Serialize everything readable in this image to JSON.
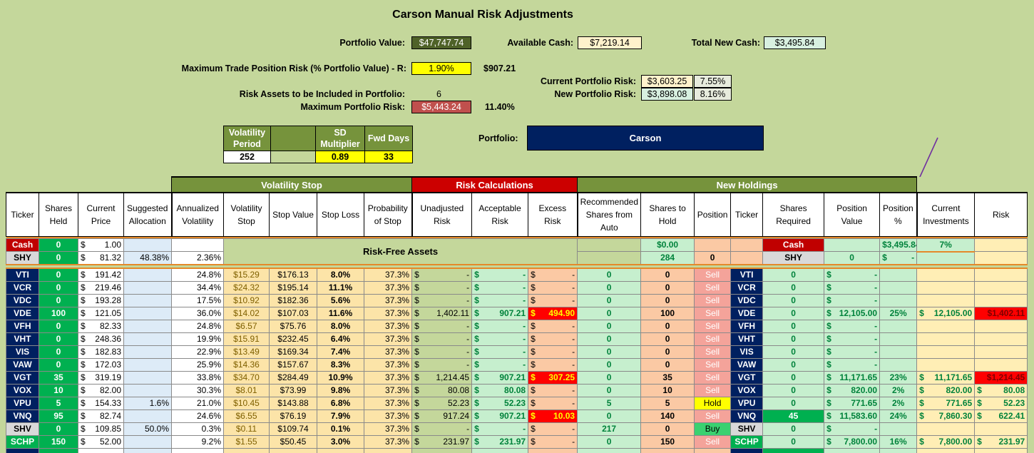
{
  "title": "Carson Manual Risk Adjustments",
  "summary": {
    "portfolio_value_label": "Portfolio Value:",
    "portfolio_value": "$47,747.74",
    "available_cash_label": "Available Cash:",
    "available_cash": "$7,219.14",
    "total_new_cash_label": "Total New Cash:",
    "total_new_cash": "$3,495.84",
    "max_trade_risk_label": "Maximum Trade Position Risk (% Portfolio Value) - R:",
    "max_trade_risk_pct": "1.90%",
    "max_trade_risk_amt": "$907.21",
    "current_risk_label": "Current Portfolio Risk:",
    "current_risk_amt": "$3,603.25",
    "current_risk_pct": "7.55%",
    "new_risk_label": "New Portfolio Risk:",
    "new_risk_amt": "$3,898.08",
    "new_risk_pct": "8.16%",
    "risk_assets_label": "Risk Assets to be Included in Portfolio:",
    "risk_assets_count": "6",
    "max_portfolio_risk_label": "Maximum Portfolio Risk:",
    "max_portfolio_risk_amt": "$5,443.24",
    "max_portfolio_risk_pct": "11.40%",
    "portfolio_label": "Portfolio:",
    "portfolio_name": "Carson"
  },
  "volatility": {
    "period_label": "Volatility Period",
    "sd_label": "SD Multiplier",
    "fwd_label": "Fwd Days",
    "period": "252",
    "sd": "0.89",
    "fwd": "33"
  },
  "bands": {
    "volatility_stop": "Volatility Stop",
    "risk_calculations": "Risk Calculations",
    "new_holdings": "New Holdings"
  },
  "headers": [
    "Ticker",
    "Shares Held",
    "Current Price",
    "Suggested Allocation",
    "Annualized Volatility",
    "Volatility Stop",
    "Stop Value",
    "Stop Loss",
    "Probability of Stop",
    "Unadjusted Risk",
    "Acceptable Risk",
    "Excess Risk",
    "Recommended Shares from Auto",
    "Shares to Hold",
    "Position",
    "Ticker",
    "Shares Required",
    "Position Value",
    "Position %",
    "Current Investments",
    "Risk"
  ],
  "risk_free_label": "Risk-Free Assets",
  "cash_row": {
    "ticker": "Cash",
    "shares": "0",
    "price": "1.00",
    "rec": "$0.00",
    "ticker2": "Cash",
    "pos_value": "$3,495.84",
    "pos_pct": "7%"
  },
  "shy_row": {
    "ticker": "SHY",
    "shares": "0",
    "price": "81.32",
    "alloc": "48.38%",
    "vol": "2.36%",
    "rec": "284",
    "hold": "0",
    "ticker2": "SHY",
    "req": "0",
    "pos_value": "-"
  },
  "rows": [
    {
      "t": "VTI",
      "sh": "0",
      "p": "191.42",
      "alloc": "",
      "vol": "24.8%",
      "vs": "$15.29",
      "sv": "$176.13",
      "sl": "8.0%",
      "ps": "37.3%",
      "ur": "-",
      "ar": "-",
      "er": "-",
      "er_hi": false,
      "rec": "0",
      "hold": "0",
      "pos": "Sell",
      "req": "0",
      "pv": "-",
      "pp": "",
      "ci": "",
      "risk": "",
      "risk_hi": false
    },
    {
      "t": "VCR",
      "sh": "0",
      "p": "219.46",
      "alloc": "",
      "vol": "34.4%",
      "vs": "$24.32",
      "sv": "$195.14",
      "sl": "11.1%",
      "ps": "37.3%",
      "ur": "-",
      "ar": "-",
      "er": "-",
      "er_hi": false,
      "rec": "0",
      "hold": "0",
      "pos": "Sell",
      "req": "0",
      "pv": "-",
      "pp": "",
      "ci": "",
      "risk": "",
      "risk_hi": false
    },
    {
      "t": "VDC",
      "sh": "0",
      "p": "193.28",
      "alloc": "",
      "vol": "17.5%",
      "vs": "$10.92",
      "sv": "$182.36",
      "sl": "5.6%",
      "ps": "37.3%",
      "ur": "-",
      "ar": "-",
      "er": "-",
      "er_hi": false,
      "rec": "0",
      "hold": "0",
      "pos": "Sell",
      "req": "0",
      "pv": "-",
      "pp": "",
      "ci": "",
      "risk": "",
      "risk_hi": false
    },
    {
      "t": "VDE",
      "sh": "100",
      "p": "121.05",
      "alloc": "",
      "vol": "36.0%",
      "vs": "$14.02",
      "sv": "$107.03",
      "sl": "11.6%",
      "ps": "37.3%",
      "ur": "1,402.11",
      "ar": "907.21",
      "er": "494.90",
      "er_hi": true,
      "rec": "0",
      "hold": "100",
      "pos": "Sell",
      "req": "0",
      "pv": "12,105.00",
      "pp": "25%",
      "ci": "12,105.00",
      "risk": "$1,402.11",
      "risk_hi": true
    },
    {
      "t": "VFH",
      "sh": "0",
      "p": "82.33",
      "alloc": "",
      "vol": "24.8%",
      "vs": "$6.57",
      "sv": "$75.76",
      "sl": "8.0%",
      "ps": "37.3%",
      "ur": "-",
      "ar": "-",
      "er": "-",
      "er_hi": false,
      "rec": "0",
      "hold": "0",
      "pos": "Sell",
      "req": "0",
      "pv": "-",
      "pp": "",
      "ci": "",
      "risk": "",
      "risk_hi": false
    },
    {
      "t": "VHT",
      "sh": "0",
      "p": "248.36",
      "alloc": "",
      "vol": "19.9%",
      "vs": "$15.91",
      "sv": "$232.45",
      "sl": "6.4%",
      "ps": "37.3%",
      "ur": "-",
      "ar": "-",
      "er": "-",
      "er_hi": false,
      "rec": "0",
      "hold": "0",
      "pos": "Sell",
      "req": "0",
      "pv": "-",
      "pp": "",
      "ci": "",
      "risk": "",
      "risk_hi": false
    },
    {
      "t": "VIS",
      "sh": "0",
      "p": "182.83",
      "alloc": "",
      "vol": "22.9%",
      "vs": "$13.49",
      "sv": "$169.34",
      "sl": "7.4%",
      "ps": "37.3%",
      "ur": "-",
      "ar": "-",
      "er": "-",
      "er_hi": false,
      "rec": "0",
      "hold": "0",
      "pos": "Sell",
      "req": "0",
      "pv": "-",
      "pp": "",
      "ci": "",
      "risk": "",
      "risk_hi": false
    },
    {
      "t": "VAW",
      "sh": "0",
      "p": "172.03",
      "alloc": "",
      "vol": "25.9%",
      "vs": "$14.36",
      "sv": "$157.67",
      "sl": "8.3%",
      "ps": "37.3%",
      "ur": "-",
      "ar": "-",
      "er": "-",
      "er_hi": false,
      "rec": "0",
      "hold": "0",
      "pos": "Sell",
      "req": "0",
      "pv": "-",
      "pp": "",
      "ci": "",
      "risk": "",
      "risk_hi": false
    },
    {
      "t": "VGT",
      "sh": "35",
      "p": "319.19",
      "alloc": "",
      "vol": "33.8%",
      "vs": "$34.70",
      "sv": "$284.49",
      "sl": "10.9%",
      "ps": "37.3%",
      "ur": "1,214.45",
      "ar": "907.21",
      "er": "307.25",
      "er_hi": true,
      "rec": "0",
      "hold": "35",
      "pos": "Sell",
      "req": "0",
      "pv": "11,171.65",
      "pp": "23%",
      "ci": "11,171.65",
      "risk": "$1,214.45",
      "risk_hi": true
    },
    {
      "t": "VOX",
      "sh": "10",
      "p": "82.00",
      "alloc": "",
      "vol": "30.3%",
      "vs": "$8.01",
      "sv": "$73.99",
      "sl": "9.8%",
      "ps": "37.3%",
      "ur": "80.08",
      "ar": "80.08",
      "er": "-",
      "er_hi": false,
      "rec": "0",
      "hold": "10",
      "pos": "Sell",
      "req": "0",
      "pv": "820.00",
      "pp": "2%",
      "ci": "820.00",
      "risk": "80.08",
      "risk_hi": false
    },
    {
      "t": "VPU",
      "sh": "5",
      "p": "154.33",
      "alloc": "1.6%",
      "vol": "21.0%",
      "vs": "$10.45",
      "sv": "$143.88",
      "sl": "6.8%",
      "ps": "37.3%",
      "ur": "52.23",
      "ar": "52.23",
      "er": "-",
      "er_hi": false,
      "rec": "5",
      "hold": "5",
      "pos": "Hold",
      "req": "0",
      "pv": "771.65",
      "pp": "2%",
      "ci": "771.65",
      "risk": "52.23",
      "risk_hi": false
    },
    {
      "t": "VNQ",
      "sh": "95",
      "p": "82.74",
      "alloc": "",
      "vol": "24.6%",
      "vs": "$6.55",
      "sv": "$76.19",
      "sl": "7.9%",
      "ps": "37.3%",
      "ur": "917.24",
      "ar": "907.21",
      "er": "10.03",
      "er_hi": true,
      "rec": "0",
      "hold": "140",
      "pos": "Sell",
      "req": "45",
      "pv": "11,583.60",
      "pp": "24%",
      "ci": "7,860.30",
      "risk": "622.41",
      "risk_hi": false
    },
    {
      "t": "SHV",
      "sh": "0",
      "p": "109.85",
      "alloc": "50.0%",
      "vol": "0.3%",
      "vs": "$0.11",
      "sv": "$109.74",
      "sl": "0.1%",
      "ps": "37.3%",
      "ur": "-",
      "ar": "-",
      "er": "-",
      "er_hi": false,
      "rec": "217",
      "hold": "0",
      "pos": "Buy",
      "req": "0",
      "pv": "-",
      "pp": "",
      "ci": "",
      "risk": "",
      "risk_hi": false
    },
    {
      "t": "SCHP",
      "sh": "150",
      "p": "52.00",
      "alloc": "",
      "vol": "9.2%",
      "vs": "$1.55",
      "sv": "$50.45",
      "sl": "3.0%",
      "ps": "37.3%",
      "ur": "231.97",
      "ar": "231.97",
      "er": "-",
      "er_hi": false,
      "rec": "0",
      "hold": "150",
      "pos": "Sell",
      "req": "0",
      "pv": "7,800.00",
      "pp": "16%",
      "ci": "7,800.00",
      "risk": "231.97",
      "risk_hi": false
    }
  ],
  "colors": {
    "background": "#c4d79b",
    "navy": "#002060",
    "olive": "#76933c",
    "red_band": "#cc0000"
  }
}
